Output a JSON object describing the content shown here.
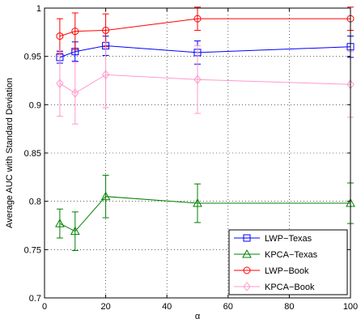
{
  "chart_data": {
    "type": "line",
    "title": "",
    "xlabel": "α",
    "ylabel": "Average AUC with Standard Deviation",
    "xlim": [
      0,
      100
    ],
    "ylim": [
      0.7,
      1
    ],
    "x_ticks": [
      0,
      20,
      40,
      60,
      80,
      100
    ],
    "x_tick_labels": [
      "0",
      "20",
      "40",
      "60",
      "80",
      "100"
    ],
    "y_ticks": [
      0.7,
      0.75,
      0.8,
      0.85,
      0.9,
      0.95,
      1
    ],
    "y_tick_labels": [
      "0.7",
      "0.75",
      "0.8",
      "0.85",
      "0.9",
      "0.95",
      "1"
    ],
    "grid": true,
    "legend_position": "bottom-right",
    "x": [
      5,
      10,
      20,
      50,
      100
    ],
    "series": [
      {
        "name": "LWP−Texas",
        "color": "#0000ff",
        "marker": "square",
        "values": [
          0.949,
          0.955,
          0.961,
          0.954,
          0.96
        ],
        "errors": [
          0.006,
          0.01,
          0.01,
          0.012,
          0.011
        ]
      },
      {
        "name": "KPCA−Texas",
        "color": "#008000",
        "marker": "triangle",
        "values": [
          0.777,
          0.769,
          0.805,
          0.798,
          0.798
        ],
        "errors": [
          0.015,
          0.02,
          0.022,
          0.02,
          0.021
        ]
      },
      {
        "name": "LWP−Book",
        "color": "#ff0000",
        "marker": "circle",
        "values": [
          0.971,
          0.976,
          0.977,
          0.989,
          0.989
        ],
        "errors": [
          0.018,
          0.019,
          0.017,
          0.012,
          0.012
        ]
      },
      {
        "name": "KPCA−Book",
        "color": "#ff99cc",
        "marker": "diamond",
        "values": [
          0.922,
          0.912,
          0.931,
          0.926,
          0.921
        ],
        "errors": [
          0.034,
          0.032,
          0.034,
          0.035,
          0.034
        ]
      }
    ]
  }
}
